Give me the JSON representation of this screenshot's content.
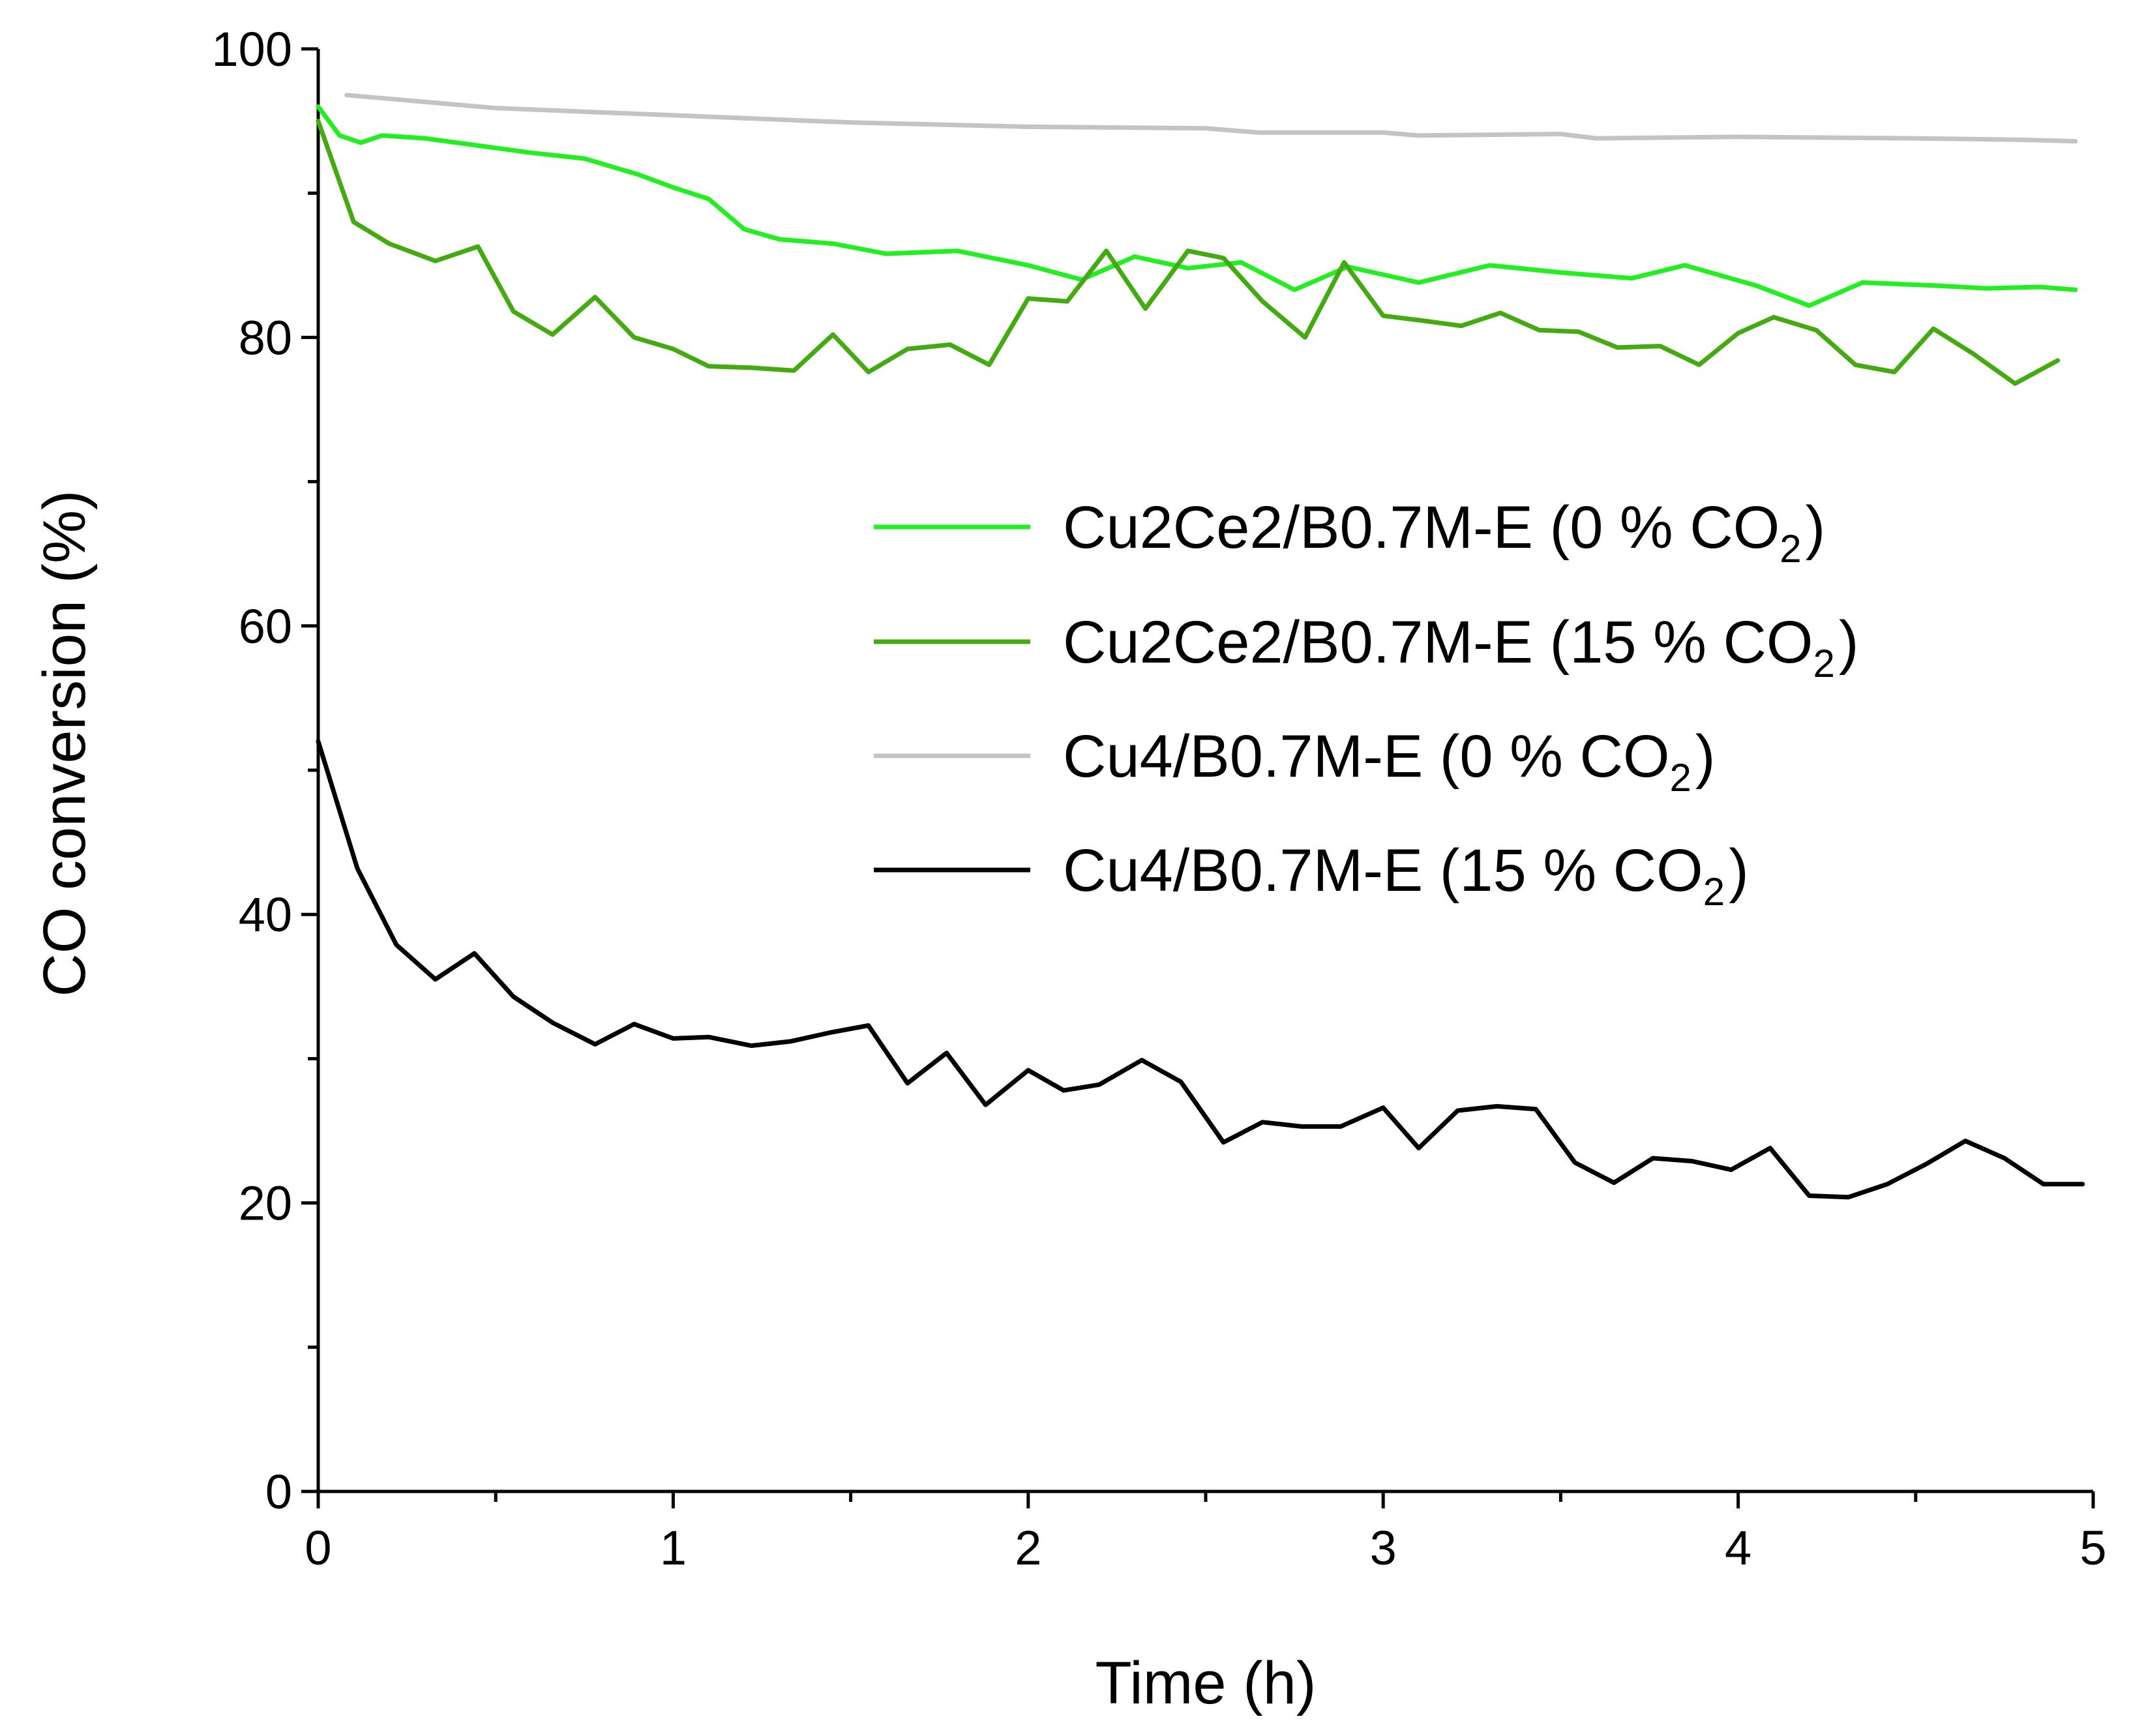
{
  "chart_data": {
    "type": "line",
    "title": "",
    "xlabel": "Time (h)",
    "ylabel": "CO conversion (%)",
    "xlim": [
      0,
      5
    ],
    "ylim": [
      0,
      100
    ],
    "x_ticks": [
      0,
      1,
      2,
      3,
      4,
      5
    ],
    "x_tick_labels": [
      "0",
      "1",
      "2",
      "3",
      "4",
      "5"
    ],
    "y_ticks": [
      0,
      20,
      40,
      60,
      80,
      100
    ],
    "y_tick_labels": [
      "0",
      "20",
      "40",
      "60",
      "80",
      "100"
    ],
    "legend_position": "center-right",
    "series": [
      {
        "name": "Cu2Ce2/B0.7M-E (0 % CO2)",
        "label_main": "Cu2Ce2/B0.7M-E (0 % CO",
        "label_sub": "2",
        "label_tail": ")",
        "color": "#22ee22",
        "x": [
          0,
          0.06,
          0.12,
          0.18,
          0.3,
          0.45,
          0.6,
          0.75,
          0.9,
          1.0,
          1.1,
          1.2,
          1.3,
          1.45,
          1.6,
          1.8,
          2.0,
          2.15,
          2.3,
          2.45,
          2.6,
          2.75,
          2.9,
          3.1,
          3.3,
          3.5,
          3.7,
          3.85,
          4.05,
          4.2,
          4.35,
          4.55,
          4.7,
          4.85,
          4.95
        ],
        "y": [
          96,
          94,
          93.5,
          94,
          93.8,
          93.3,
          92.8,
          92.4,
          91.3,
          90.4,
          89.6,
          87.5,
          86.8,
          86.5,
          85.8,
          86,
          85,
          84,
          85.6,
          84.8,
          85.2,
          83.3,
          84.9,
          83.8,
          85,
          84.5,
          84.1,
          85,
          83.6,
          82.2,
          83.8,
          83.6,
          83.4,
          83.5,
          83.3
        ]
      },
      {
        "name": "Cu2Ce2/B0.7M-E (15 % CO2)",
        "label_main": "Cu2Ce2/B0.7M-E (15 % CO",
        "label_sub": "2",
        "label_tail": ")",
        "color": "#44aa11",
        "x": [
          0,
          0.1,
          0.2,
          0.33,
          0.45,
          0.55,
          0.66,
          0.78,
          0.89,
          1.0,
          1.1,
          1.22,
          1.34,
          1.45,
          1.55,
          1.66,
          1.78,
          1.89,
          2.0,
          2.11,
          2.22,
          2.33,
          2.45,
          2.55,
          2.66,
          2.78,
          2.89,
          3.0,
          3.1,
          3.22,
          3.33,
          3.44,
          3.55,
          3.66,
          3.78,
          3.89,
          4.0,
          4.1,
          4.22,
          4.33,
          4.44,
          4.55,
          4.66,
          4.78,
          4.9
        ],
        "y": [
          95,
          88,
          86.5,
          85.3,
          86.3,
          81.8,
          80.2,
          82.8,
          80.0,
          79.2,
          78,
          77.9,
          77.7,
          80.2,
          77.6,
          79.2,
          79.5,
          78.1,
          82.7,
          82.5,
          86,
          82,
          86,
          85.5,
          82.5,
          80,
          85.2,
          81.5,
          81.2,
          80.8,
          81.7,
          80.5,
          80.4,
          79.3,
          79.4,
          78.1,
          80.3,
          81.4,
          80.5,
          78.1,
          77.6,
          80.6,
          78.9,
          76.8,
          78.4
        ]
      },
      {
        "name": "Cu4/B0.7M-E (0 % CO2)",
        "label_main": "Cu4/B0.7M-E (0 % CO",
        "label_sub": "2",
        "label_tail": ")",
        "color": "#c4c4c4",
        "x": [
          0.08,
          0.5,
          1.0,
          1.5,
          2.0,
          2.5,
          2.65,
          3.0,
          3.1,
          3.5,
          3.6,
          4.0,
          4.5,
          4.8,
          4.95
        ],
        "y": [
          96.8,
          95.9,
          95.4,
          94.9,
          94.6,
          94.5,
          94.2,
          94.2,
          94.0,
          94.1,
          93.8,
          93.9,
          93.8,
          93.7,
          93.6
        ]
      },
      {
        "name": "Cu4/B0.7M-E (15 % CO2)",
        "label_main": "Cu4/B0.7M-E (15 % CO",
        "label_sub": "2",
        "label_tail": ")",
        "color": "#000000",
        "x": [
          0,
          0.11,
          0.22,
          0.33,
          0.44,
          0.55,
          0.66,
          0.78,
          0.89,
          1.0,
          1.1,
          1.22,
          1.33,
          1.44,
          1.55,
          1.66,
          1.77,
          1.88,
          2.0,
          2.1,
          2.2,
          2.32,
          2.43,
          2.55,
          2.66,
          2.77,
          2.88,
          3.0,
          3.1,
          3.21,
          3.32,
          3.43,
          3.54,
          3.65,
          3.76,
          3.87,
          3.98,
          4.09,
          4.2,
          4.31,
          4.42,
          4.53,
          4.64,
          4.75,
          4.86,
          4.97
        ],
        "y": [
          52,
          43.2,
          37.9,
          35.5,
          37.3,
          34.3,
          32.5,
          31.0,
          32.4,
          31.4,
          31.5,
          30.9,
          31.2,
          31.8,
          32.3,
          28.3,
          30.4,
          26.8,
          29.2,
          27.8,
          28.2,
          29.9,
          28.4,
          24.2,
          25.6,
          25.3,
          25.3,
          26.6,
          23.8,
          26.4,
          26.7,
          26.5,
          22.8,
          21.4,
          23.1,
          22.9,
          22.3,
          23.8,
          20.5,
          20.4,
          21.3,
          22.7,
          24.3,
          23.1,
          21.3,
          21.3
        ]
      }
    ]
  }
}
